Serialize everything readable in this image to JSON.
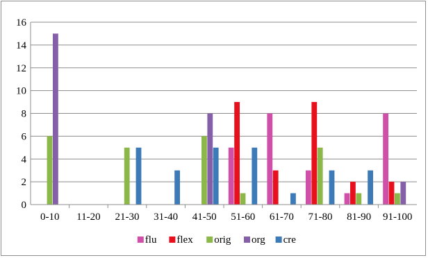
{
  "chart_data": {
    "type": "bar",
    "categories": [
      "0-10",
      "11-20",
      "21-30",
      "31-40",
      "41-50",
      "51-60",
      "61-70",
      "71-80",
      "81-90",
      "91-100"
    ],
    "series": [
      {
        "name": "flu",
        "color": "#d04fa8",
        "values": [
          0,
          0,
          0,
          0,
          0,
          5,
          8,
          3,
          1,
          8
        ]
      },
      {
        "name": "flex",
        "color": "#e8101c",
        "values": [
          0,
          0,
          0,
          0,
          0,
          9,
          3,
          9,
          2,
          2
        ]
      },
      {
        "name": "orig",
        "color": "#8cb84a",
        "values": [
          6,
          0,
          5,
          0,
          6,
          1,
          0,
          5,
          1,
          1
        ]
      },
      {
        "name": "org",
        "color": "#8560a8",
        "values": [
          15,
          0,
          0,
          0,
          8,
          0,
          0,
          0,
          0,
          2
        ]
      },
      {
        "name": "cre",
        "color": "#3d7ab8",
        "values": [
          0,
          0,
          5,
          3,
          5,
          5,
          1,
          3,
          3,
          0
        ]
      }
    ],
    "ylim": [
      0,
      16
    ],
    "yticks": [
      0,
      2,
      4,
      6,
      8,
      10,
      12,
      14,
      16
    ],
    "grid": true,
    "legend": "bottom"
  }
}
